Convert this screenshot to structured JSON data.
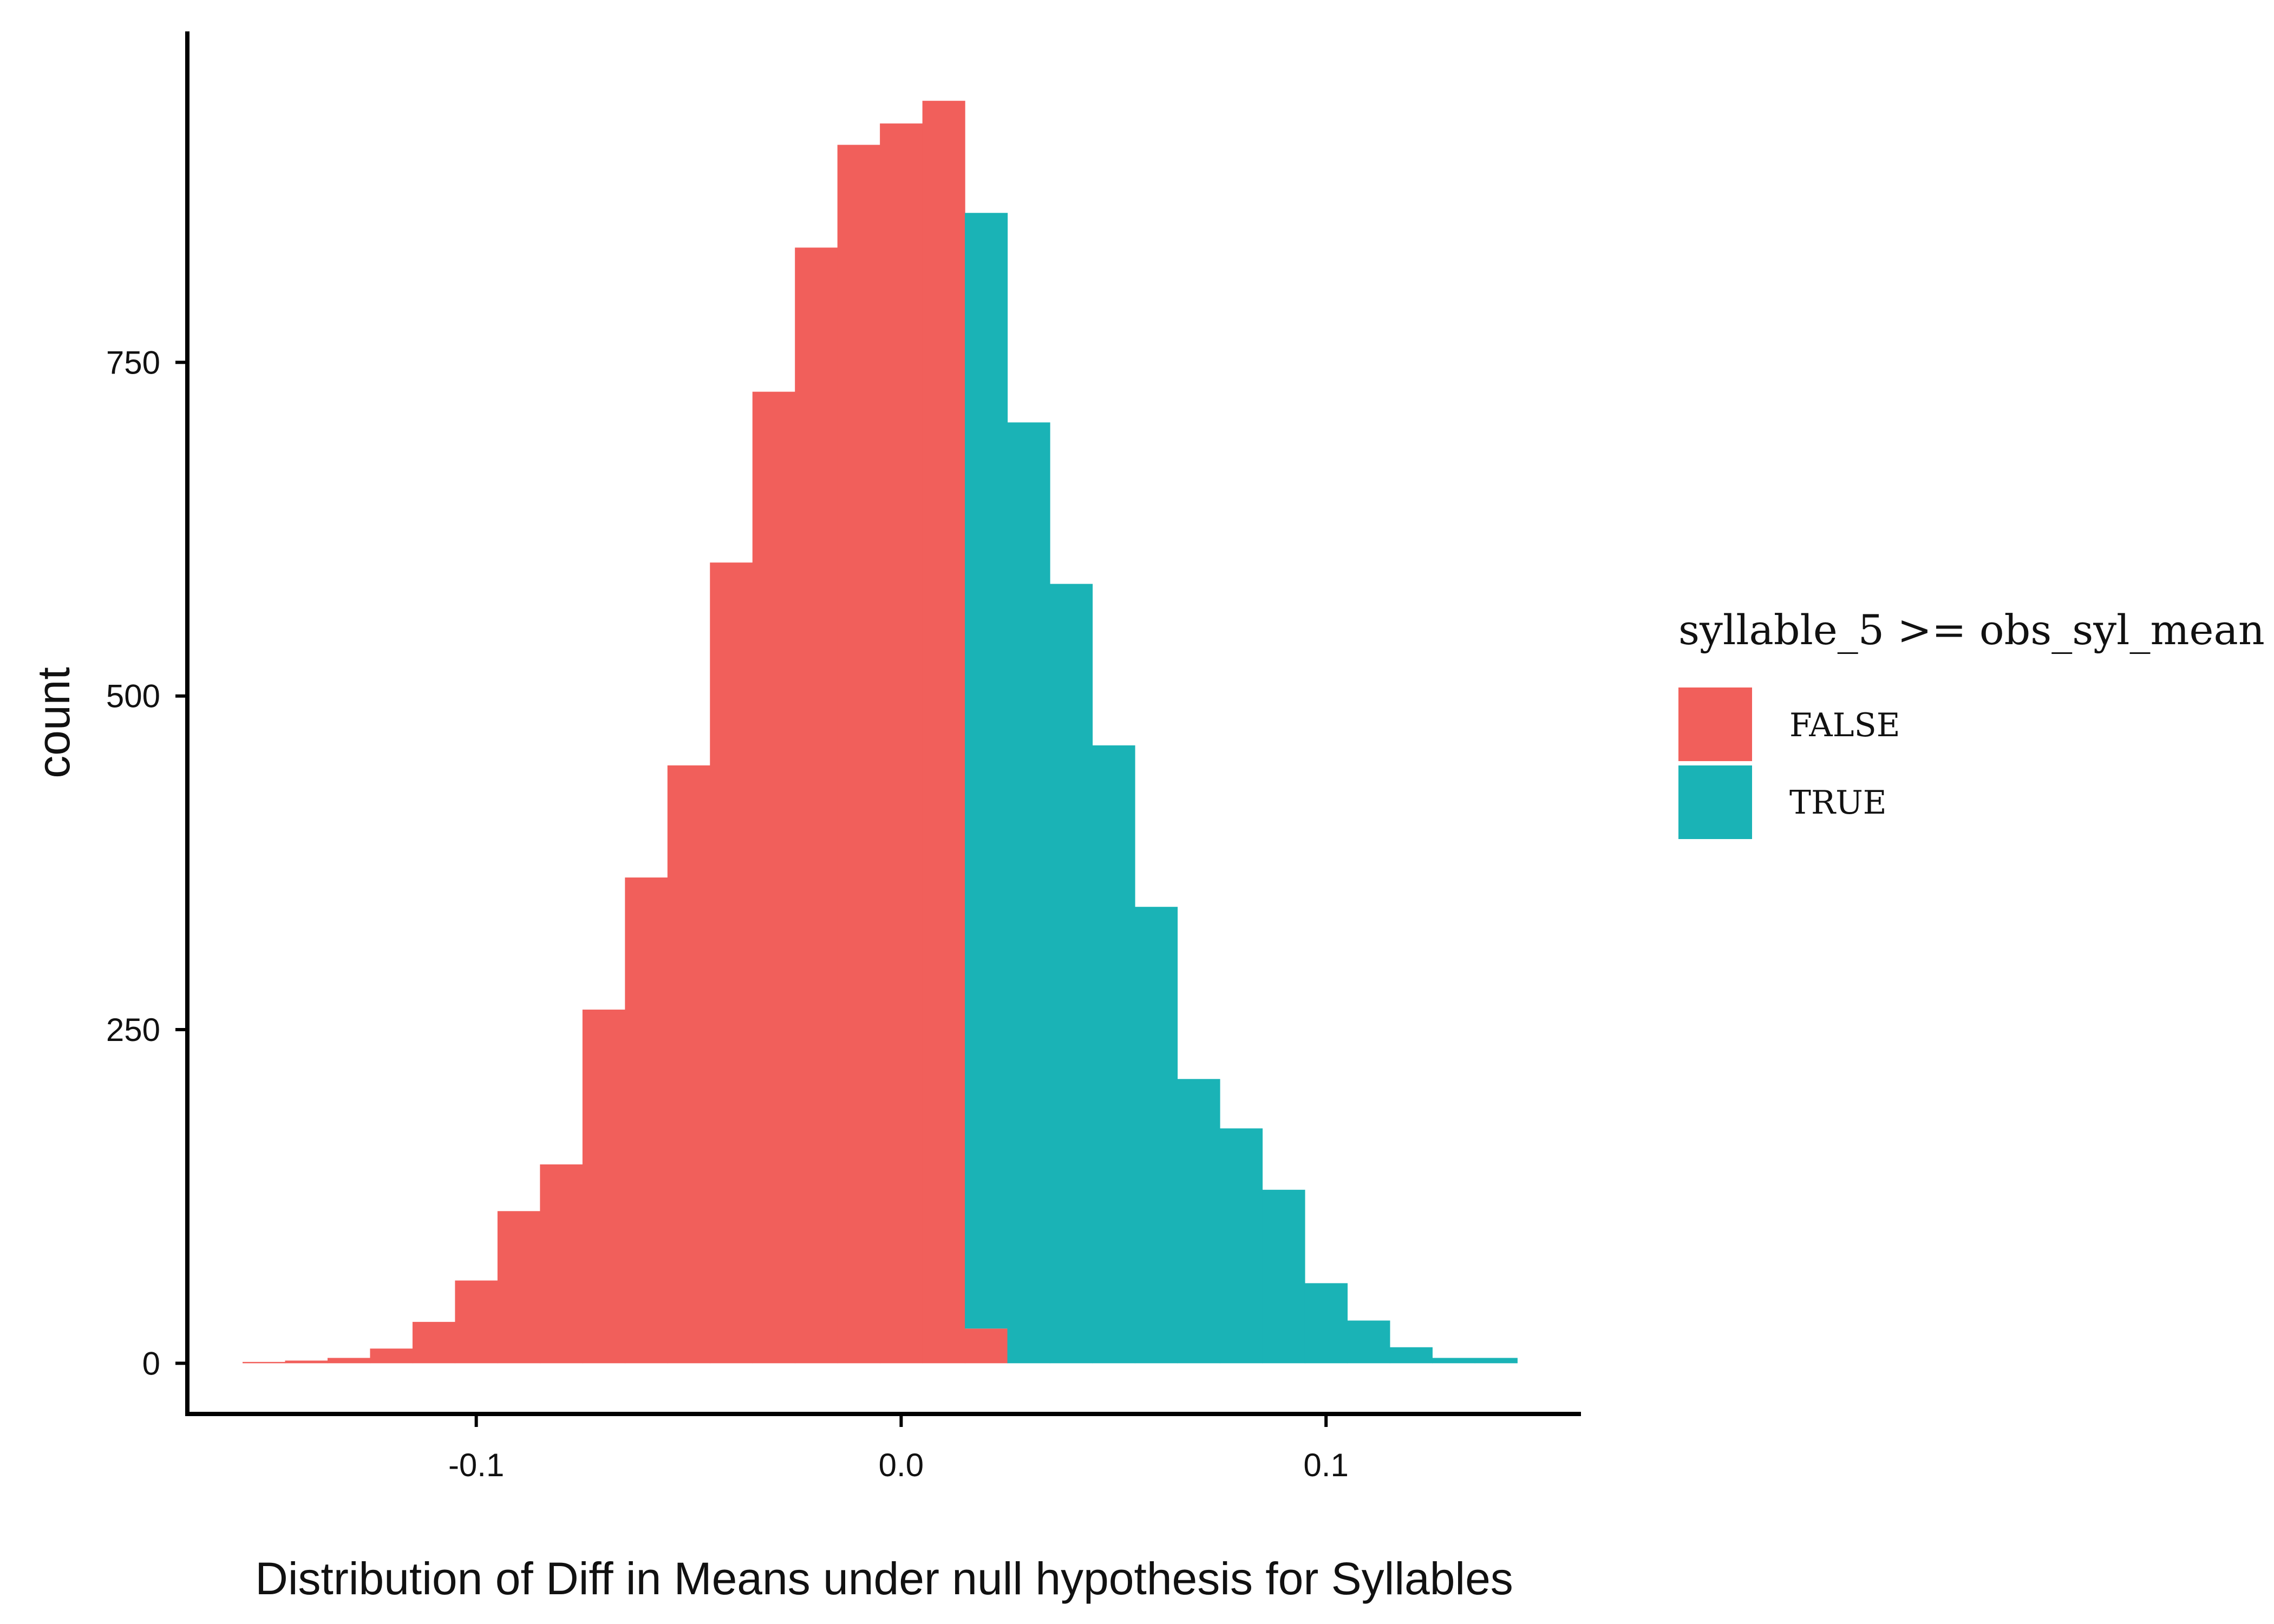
{
  "chart_data": {
    "type": "bar",
    "subtype": "histogram",
    "title": "",
    "xlabel": "Distribution of Diff in Means under null hypothesis for Syllables",
    "ylabel": "count",
    "xlim": [
      -0.168,
      0.16
    ],
    "ylim": [
      -38,
      998
    ],
    "x_ticks": [
      -0.1,
      0.0,
      0.1
    ],
    "x_tick_labels": [
      "-0.1",
      "0.0",
      "0.1"
    ],
    "y_ticks": [
      0,
      250,
      500,
      750
    ],
    "y_tick_labels": [
      "0",
      "250",
      "500",
      "750"
    ],
    "grid": false,
    "legend": {
      "title": "syllable_5 >= obs_syl_mean",
      "position": "right",
      "entries": [
        {
          "label": "FALSE",
          "color": "#F15F5B"
        },
        {
          "label": "TRUE",
          "color": "#1AB3B6"
        }
      ]
    },
    "bin_width": 0.01,
    "series": [
      {
        "name": "FALSE",
        "color": "#F15F5B",
        "bins": [
          {
            "x0": -0.155,
            "x1": -0.145,
            "count": 1
          },
          {
            "x0": -0.145,
            "x1": -0.135,
            "count": 2
          },
          {
            "x0": -0.135,
            "x1": -0.125,
            "count": 4
          },
          {
            "x0": -0.125,
            "x1": -0.115,
            "count": 11
          },
          {
            "x0": -0.115,
            "x1": -0.105,
            "count": 31
          },
          {
            "x0": -0.105,
            "x1": -0.095,
            "count": 62
          },
          {
            "x0": -0.095,
            "x1": -0.085,
            "count": 114
          },
          {
            "x0": -0.085,
            "x1": -0.075,
            "count": 149
          },
          {
            "x0": -0.075,
            "x1": -0.065,
            "count": 265
          },
          {
            "x0": -0.065,
            "x1": -0.055,
            "count": 364
          },
          {
            "x0": -0.055,
            "x1": -0.045,
            "count": 448
          },
          {
            "x0": -0.045,
            "x1": -0.035,
            "count": 600
          },
          {
            "x0": -0.035,
            "x1": -0.025,
            "count": 728
          },
          {
            "x0": -0.025,
            "x1": -0.015,
            "count": 836
          },
          {
            "x0": -0.015,
            "x1": -0.005,
            "count": 913
          },
          {
            "x0": -0.005,
            "x1": 0.005,
            "count": 929
          },
          {
            "x0": 0.005,
            "x1": 0.015,
            "count": 946
          },
          {
            "x0": 0.015,
            "x1": 0.025,
            "count": 26
          }
        ]
      },
      {
        "name": "TRUE",
        "color": "#1AB3B6",
        "bins": [
          {
            "x0": 0.015,
            "x1": 0.025,
            "count": 836
          },
          {
            "x0": 0.025,
            "x1": 0.035,
            "count": 705
          },
          {
            "x0": 0.035,
            "x1": 0.045,
            "count": 584
          },
          {
            "x0": 0.045,
            "x1": 0.055,
            "count": 463
          },
          {
            "x0": 0.055,
            "x1": 0.065,
            "count": 342
          },
          {
            "x0": 0.065,
            "x1": 0.075,
            "count": 213
          },
          {
            "x0": 0.075,
            "x1": 0.085,
            "count": 176
          },
          {
            "x0": 0.085,
            "x1": 0.095,
            "count": 130
          },
          {
            "x0": 0.095,
            "x1": 0.105,
            "count": 60
          },
          {
            "x0": 0.105,
            "x1": 0.115,
            "count": 32
          },
          {
            "x0": 0.115,
            "x1": 0.125,
            "count": 12
          },
          {
            "x0": 0.125,
            "x1": 0.135,
            "count": 4
          },
          {
            "x0": 0.135,
            "x1": 0.145,
            "count": 4
          }
        ]
      }
    ]
  }
}
